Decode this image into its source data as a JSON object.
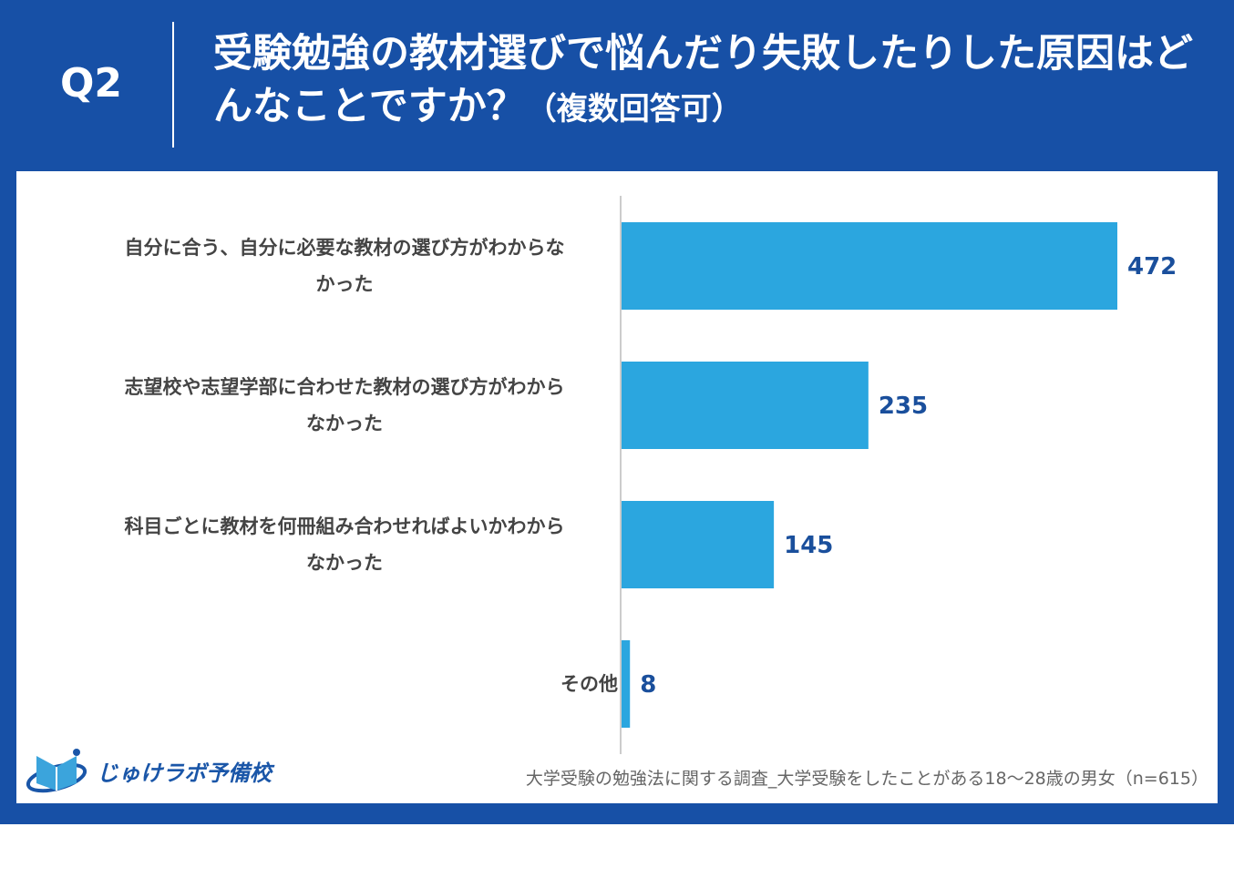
{
  "header": {
    "qnum": "Q2",
    "title": "受験勉強の教材選びで悩んだり失敗したりした原因はどんなことですか？",
    "title_note": "（複数回答可）"
  },
  "chart_data": {
    "type": "bar",
    "orientation": "horizontal",
    "categories": [
      "自分に合う、自分に必要な教材の選び方がわからなかった",
      "志望校や志望学部に合わせた教材の選び方がわからなかった",
      "科目ごとに教材を何冊組み合わせればよいかわからなかった",
      "その他"
    ],
    "label_lines": [
      [
        "自分に合う、自分に必要な教材の選び方がわからな",
        "かった"
      ],
      [
        "志望校や志望学部に合わせた教材の選び方がわから",
        "なかった"
      ],
      [
        "科目ごとに教材を何冊組み合わせればよいかわから",
        "なかった"
      ],
      [
        "その他"
      ]
    ],
    "values": [
      472,
      235,
      145,
      8
    ],
    "value_labels": [
      "472",
      "235",
      "145",
      "8"
    ],
    "grid": false,
    "bar_color": "#2ba6df",
    "label_color": "#1a4f9c"
  },
  "footer": {
    "logo_text": "じゅけラボ予備校",
    "source": "大学受験の勉強法に関する調査_大学受験をしたことがある18～28歳の男女（n=615）"
  },
  "colors": {
    "frame": "#1750a6"
  }
}
